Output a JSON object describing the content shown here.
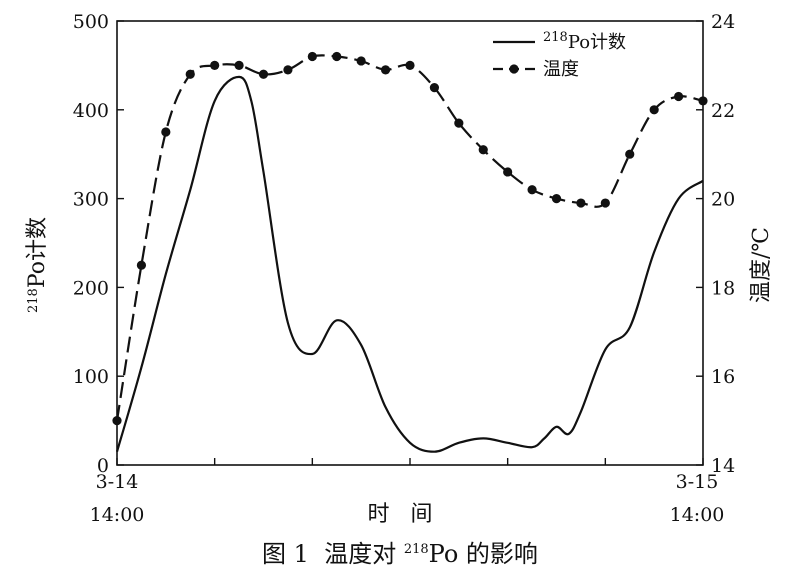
{
  "chart_data": {
    "type": "line",
    "caption": {
      "prefix": "图 1  温度对 ",
      "sup": "218",
      "suffix": "Po 的影响"
    },
    "x_axis": {
      "title": "时   间",
      "start_label": [
        "3-14",
        "14:00"
      ],
      "end_label": [
        "3-15",
        "14:00"
      ],
      "range": [
        0,
        24
      ]
    },
    "y_left": {
      "title_sup": "218",
      "title_main": "Po计数",
      "range": [
        0,
        500
      ],
      "ticks": [
        0,
        100,
        200,
        300,
        400,
        500
      ]
    },
    "y_right": {
      "title": "温度/℃",
      "range": [
        14,
        24
      ],
      "ticks": [
        14,
        16,
        18,
        20,
        22,
        24
      ]
    },
    "legend": {
      "placement": "top-right",
      "items": [
        {
          "sup": "218",
          "label": "Po计数",
          "style": "solid"
        },
        {
          "sup": "",
          "label": "温度",
          "style": "dashed-dot"
        }
      ]
    },
    "series": [
      {
        "axis": "left",
        "style": "solid",
        "points": [
          [
            0,
            15
          ],
          [
            1,
            110
          ],
          [
            2,
            215
          ],
          [
            3,
            310
          ],
          [
            4,
            410
          ],
          [
            5,
            437
          ],
          [
            5.5,
            410
          ],
          [
            6,
            330
          ],
          [
            7,
            160
          ],
          [
            8,
            125
          ],
          [
            9,
            163
          ],
          [
            10,
            135
          ],
          [
            11,
            65
          ],
          [
            12,
            25
          ],
          [
            13,
            15
          ],
          [
            14,
            25
          ],
          [
            15,
            30
          ],
          [
            16,
            25
          ],
          [
            17,
            20
          ],
          [
            17.5,
            30
          ],
          [
            18,
            43
          ],
          [
            18.5,
            35
          ],
          [
            19,
            60
          ],
          [
            20,
            130
          ],
          [
            21,
            155
          ],
          [
            22,
            240
          ],
          [
            23,
            300
          ],
          [
            24,
            320
          ]
        ]
      },
      {
        "name": "温度",
        "axis": "right",
        "style": "dashed",
        "points": [
          [
            0,
            15.0
          ],
          [
            1,
            18.5
          ],
          [
            2,
            21.5
          ],
          [
            3,
            22.8
          ],
          [
            4,
            23.0
          ],
          [
            5,
            23.0
          ],
          [
            6,
            22.8
          ],
          [
            7,
            22.9
          ],
          [
            8,
            23.2
          ],
          [
            9,
            23.2
          ],
          [
            10,
            23.1
          ],
          [
            11,
            22.9
          ],
          [
            12,
            23.0
          ],
          [
            13,
            22.5
          ],
          [
            14,
            21.7
          ],
          [
            15,
            21.1
          ],
          [
            16,
            20.6
          ],
          [
            17,
            20.2
          ],
          [
            18,
            20.0
          ],
          [
            19,
            19.9
          ],
          [
            20,
            19.9
          ],
          [
            21,
            21.0
          ],
          [
            22,
            22.0
          ],
          [
            23,
            22.3
          ],
          [
            24,
            22.2
          ]
        ]
      }
    ]
  }
}
